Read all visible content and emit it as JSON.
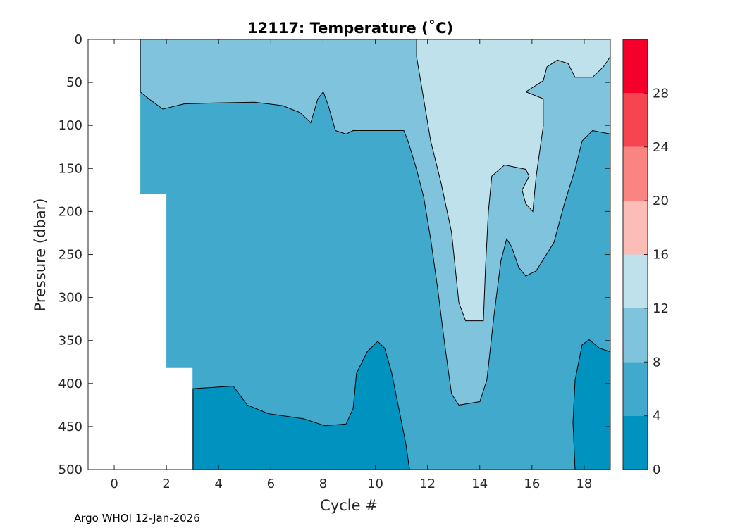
{
  "chart_data": {
    "type": "contourf",
    "title": "12117:  Temperature (˚C)",
    "xlabel": "Cycle #",
    "ylabel": "Pressure (dbar)",
    "xlim": [
      -1,
      19
    ],
    "ylim": [
      0,
      500
    ],
    "y_reversed": true,
    "xticks": [
      0,
      2,
      4,
      6,
      8,
      10,
      12,
      14,
      16,
      18
    ],
    "yticks": [
      0,
      50,
      100,
      150,
      200,
      250,
      300,
      350,
      400,
      450,
      500
    ],
    "levels": [
      0,
      4,
      8,
      12,
      16,
      20,
      24,
      28,
      32
    ],
    "level_colors": [
      "#0093BF",
      "#40A9CC",
      "#7FC3DD",
      "#BFE1EC",
      "#FBBDB6",
      "#F98480",
      "#F64550",
      "#F5002A"
    ],
    "colorbar": {
      "ticks": [
        0,
        4,
        8,
        12,
        16,
        20,
        24,
        28
      ],
      "range": [
        0,
        32
      ],
      "position": "right"
    },
    "regions": [
      {
        "level": "4-8",
        "color": "#40A9CC",
        "points": [
          [
            1,
            0
          ],
          [
            19,
            0
          ],
          [
            19,
            500
          ],
          [
            3,
            500
          ],
          [
            3,
            382
          ],
          [
            2,
            382
          ],
          [
            2,
            180
          ],
          [
            1,
            180
          ]
        ]
      },
      {
        "level": "8-12",
        "color": "#7FC3DD",
        "points": [
          [
            1,
            0
          ],
          [
            19,
            0
          ],
          [
            19,
            110
          ],
          [
            18.32,
            106
          ],
          [
            17.92,
            118
          ],
          [
            17.65,
            151
          ],
          [
            17.24,
            191
          ],
          [
            16.84,
            236
          ],
          [
            16.16,
            269
          ],
          [
            15.76,
            275
          ],
          [
            15.49,
            265
          ],
          [
            15.22,
            241
          ],
          [
            15.03,
            232
          ],
          [
            14.81,
            257
          ],
          [
            14.54,
            322
          ],
          [
            14.27,
            396
          ],
          [
            14,
            421
          ],
          [
            13.2,
            425
          ],
          [
            12.92,
            412
          ],
          [
            12.66,
            355
          ],
          [
            12.39,
            290
          ],
          [
            12.12,
            232
          ],
          [
            11.85,
            183
          ],
          [
            11.58,
            151
          ],
          [
            11.25,
            118
          ],
          [
            11.09,
            106
          ],
          [
            9.15,
            106
          ],
          [
            8.88,
            110
          ],
          [
            8.47,
            106
          ],
          [
            8.2,
            77
          ],
          [
            8.01,
            61
          ],
          [
            7.8,
            69
          ],
          [
            7.53,
            97
          ],
          [
            7.12,
            85
          ],
          [
            6.45,
            77
          ],
          [
            5.37,
            73
          ],
          [
            3.75,
            74
          ],
          [
            2.67,
            75
          ],
          [
            1.86,
            81
          ],
          [
            1.32,
            69
          ],
          [
            1,
            61
          ]
        ]
      },
      {
        "level": "12-16",
        "color": "#BFE1EC",
        "points": [
          [
            11.58,
            0
          ],
          [
            11.58,
            20
          ],
          [
            11.85,
            69
          ],
          [
            12.12,
            118
          ],
          [
            12.52,
            167
          ],
          [
            12.92,
            224
          ],
          [
            13.2,
            306
          ],
          [
            13.46,
            327
          ],
          [
            14.14,
            327
          ],
          [
            14.22,
            265
          ],
          [
            14.33,
            200
          ],
          [
            14.46,
            159
          ],
          [
            14.95,
            146
          ],
          [
            15.76,
            151
          ],
          [
            15.89,
            159
          ],
          [
            15.62,
            175
          ],
          [
            15.76,
            191
          ],
          [
            16.03,
            200
          ],
          [
            16.16,
            159
          ],
          [
            16.43,
            101
          ],
          [
            16.43,
            69
          ],
          [
            15.76,
            61
          ],
          [
            16.43,
            48
          ],
          [
            16.57,
            32
          ],
          [
            16.97,
            24
          ],
          [
            17.38,
            28
          ],
          [
            17.65,
            44
          ],
          [
            18.32,
            44
          ],
          [
            18.73,
            32
          ],
          [
            19,
            20
          ],
          [
            19,
            0
          ]
        ]
      },
      {
        "level": "0-4",
        "color": "#0093BF",
        "points": [
          [
            3.02,
            406
          ],
          [
            4.56,
            403
          ],
          [
            5.1,
            425
          ],
          [
            5.91,
            435
          ],
          [
            7.26,
            441
          ],
          [
            8.07,
            449
          ],
          [
            8.88,
            447
          ],
          [
            9.15,
            429
          ],
          [
            9.28,
            388
          ],
          [
            9.69,
            363
          ],
          [
            10.09,
            351
          ],
          [
            10.36,
            359
          ],
          [
            10.63,
            388
          ],
          [
            10.9,
            429
          ],
          [
            11.17,
            470
          ],
          [
            11.31,
            500
          ],
          [
            3.02,
            500
          ]
        ]
      },
      {
        "level": "0-4",
        "color": "#0093BF",
        "points": [
          [
            17.65,
            500
          ],
          [
            17.57,
            445
          ],
          [
            17.65,
            396
          ],
          [
            17.92,
            355
          ],
          [
            18.19,
            349
          ],
          [
            18.59,
            359
          ],
          [
            19,
            363
          ],
          [
            19,
            500
          ]
        ]
      }
    ]
  },
  "footer": "Argo WHOI 12-Jan-2026"
}
